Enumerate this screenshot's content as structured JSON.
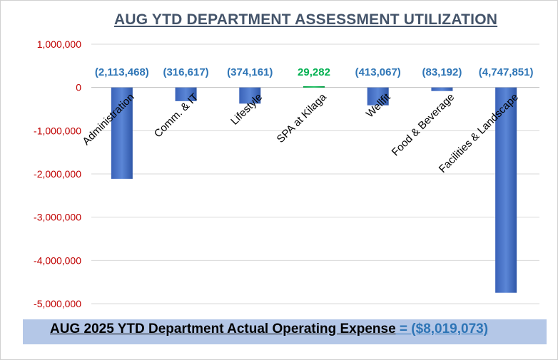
{
  "chart_data": {
    "type": "bar",
    "title": "AUG  YTD DEPARTMENT ASSESSMENT UTILIZATION",
    "categories": [
      "Administration",
      "Comm. & IT",
      "Lifestyle",
      "SPA at Kilaga",
      "Wellfit",
      "Food & Beverage",
      "Facilities & Landscape"
    ],
    "values": [
      -2113468,
      -316617,
      -374161,
      29282,
      -413067,
      -83192,
      -4747851
    ],
    "value_labels": [
      "(2,113,468)",
      "(316,617)",
      "(374,161)",
      "29,282",
      "(413,067)",
      "(83,192)",
      "(4,747,851)"
    ],
    "ylim": [
      -5000000,
      1000000
    ],
    "yticks": [
      1000000,
      0,
      -1000000,
      -2000000,
      -3000000,
      -4000000,
      -5000000
    ],
    "ytick_labels": [
      "1,000,000",
      "0",
      "-1,000,000",
      "-2,000,000",
      "-3,000,000",
      "-4,000,000",
      "-5,000,000"
    ],
    "grid": true,
    "xlabel": "",
    "ylabel": "",
    "colors": {
      "negative_bar": "#4472c4",
      "positive_bar": "#00b050",
      "negative_label": "#2e75b6",
      "positive_label": "#00b050",
      "axis_label": "#c00000",
      "gridline": "#d9d9d9"
    }
  },
  "footer": {
    "label": "AUG  2025 YTD Department Actual Operating Expense",
    "equals": " = ",
    "value": "($8,019,073)"
  }
}
